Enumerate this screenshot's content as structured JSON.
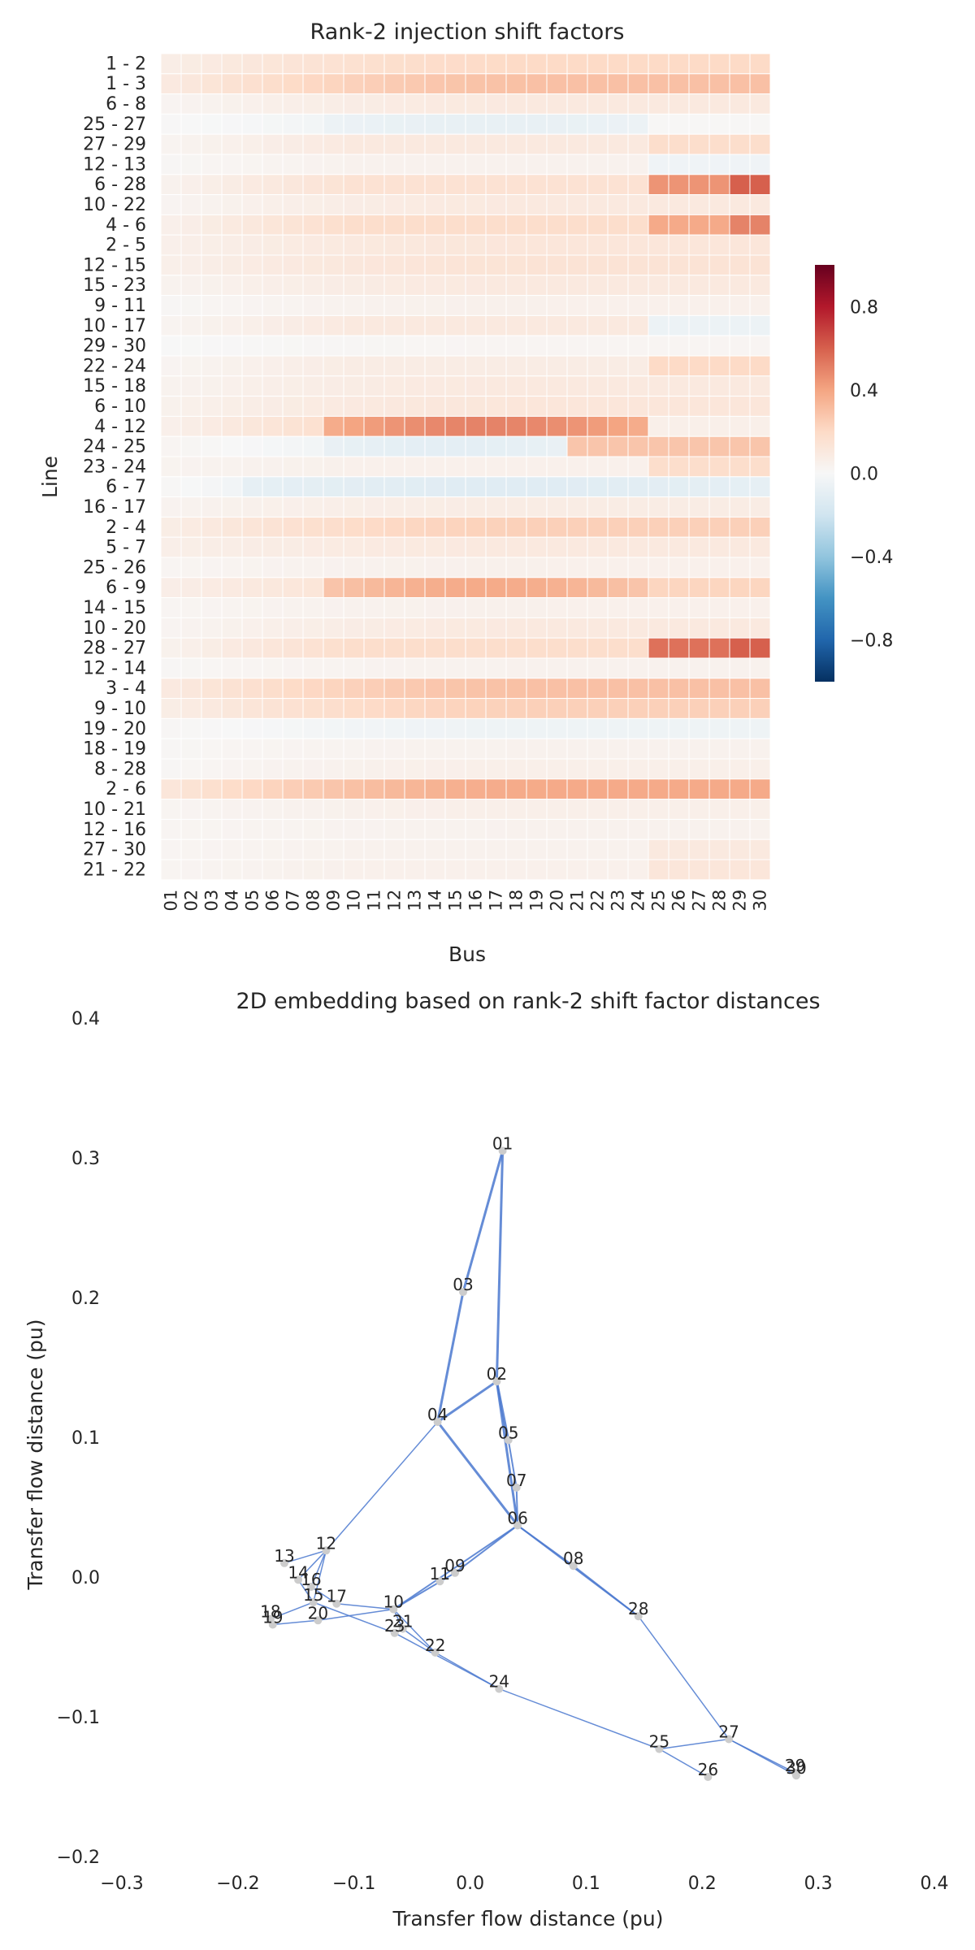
{
  "chart_data": [
    {
      "type": "heatmap",
      "title": "Rank-2 injection shift factors",
      "xlabel": "Bus",
      "ylabel": "Line",
      "x_categories": [
        "01",
        "02",
        "03",
        "04",
        "05",
        "06",
        "07",
        "08",
        "09",
        "10",
        "11",
        "12",
        "13",
        "14",
        "15",
        "16",
        "17",
        "18",
        "19",
        "20",
        "21",
        "22",
        "23",
        "24",
        "25",
        "26",
        "27",
        "28",
        "29",
        "30"
      ],
      "y_categories": [
        "1 - 2",
        "1 - 3",
        "6 - 8",
        "25 - 27",
        "27 - 29",
        "12 - 13",
        "6 - 28",
        "10 - 22",
        "4 - 6",
        "2 - 5",
        "12 - 15",
        "15 - 23",
        "9 - 11",
        "10 - 17",
        "29 - 30",
        "22 - 24",
        "15 - 18",
        "6 - 10",
        "4 - 12",
        "24 - 25",
        "23 - 24",
        "6 - 7",
        "16 - 17",
        "2 - 4",
        "5 - 7",
        "25 - 26",
        "6 - 9",
        "14 - 15",
        "10 - 20",
        "28 - 27",
        "12 - 14",
        "3 - 4",
        "9 - 10",
        "19 - 20",
        "18 - 19",
        "8 - 28",
        "2 - 6",
        "10 - 21",
        "12 - 16",
        "27 - 30",
        "21 - 22"
      ],
      "colormap": "RdBu_r",
      "vmin": -1.0,
      "vmax": 1.0,
      "colorbar_ticks": [
        0.8,
        0.4,
        0.0,
        -0.4,
        -0.8
      ],
      "colorbar_tick_labels": [
        "0.8",
        "0.4",
        "0.0",
        "−0.4",
        "−0.8"
      ],
      "rows": [
        {
          "type": "linear",
          "a": 0.06,
          "b": 0.2
        },
        {
          "type": "linear",
          "a": 0.08,
          "b": 0.3
        },
        {
          "type": "linear",
          "a": 0.02,
          "b": 0.1
        },
        {
          "type": "bump",
          "edge": 0.01,
          "mid": -0.08,
          "s": 9,
          "e": 24,
          "tail": 0.01
        },
        {
          "type": "step",
          "a": 0.02,
          "b": 0.1,
          "tail": 0.18
        },
        {
          "type": "step",
          "a": 0.01,
          "b": 0.04,
          "tail": -0.04
        },
        {
          "type": "step",
          "a": 0.03,
          "b": 0.15,
          "tail": 0.45,
          "t2": 0.6
        },
        {
          "type": "linear",
          "a": 0.02,
          "b": 0.1
        },
        {
          "type": "step",
          "a": 0.04,
          "b": 0.18,
          "tail": 0.38,
          "t2": 0.5
        },
        {
          "type": "linear",
          "a": 0.05,
          "b": 0.12
        },
        {
          "type": "linear",
          "a": 0.05,
          "b": 0.14
        },
        {
          "type": "linear",
          "a": 0.03,
          "b": 0.1
        },
        {
          "type": "linear",
          "a": 0.01,
          "b": 0.05
        },
        {
          "type": "step",
          "a": 0.02,
          "b": 0.1,
          "tail": -0.06
        },
        {
          "type": "linear",
          "a": 0.0,
          "b": 0.02
        },
        {
          "type": "step",
          "a": 0.02,
          "b": 0.08,
          "tail": 0.2
        },
        {
          "type": "linear",
          "a": 0.03,
          "b": 0.1
        },
        {
          "type": "linear",
          "a": 0.04,
          "b": 0.12
        },
        {
          "type": "bump",
          "edge": 0.04,
          "mid": 0.5,
          "s": 9,
          "e": 24,
          "tail": 0.06
        },
        {
          "type": "bump",
          "edge": 0.03,
          "mid": -0.1,
          "s": 9,
          "e": 20,
          "tail": 0.28
        },
        {
          "type": "step",
          "a": 0.03,
          "b": 0.05,
          "tail": 0.18
        },
        {
          "type": "bump",
          "edge": 0.02,
          "mid": -0.12,
          "s": 5,
          "e": 30,
          "tail": -0.1
        },
        {
          "type": "linear",
          "a": 0.03,
          "b": 0.08
        },
        {
          "type": "linear",
          "a": 0.06,
          "b": 0.24
        },
        {
          "type": "linear",
          "a": 0.06,
          "b": 0.1
        },
        {
          "type": "linear",
          "a": 0.02,
          "b": 0.05
        },
        {
          "type": "bump",
          "edge": 0.06,
          "mid": 0.38,
          "s": 9,
          "e": 24,
          "tail": 0.22
        },
        {
          "type": "linear",
          "a": 0.02,
          "b": 0.05
        },
        {
          "type": "linear",
          "a": 0.02,
          "b": 0.1
        },
        {
          "type": "step",
          "a": 0.03,
          "b": 0.18,
          "tail": 0.55,
          "t2": 0.6
        },
        {
          "type": "linear",
          "a": 0.01,
          "b": 0.04
        },
        {
          "type": "linear",
          "a": 0.08,
          "b": 0.3
        },
        {
          "type": "linear",
          "a": 0.06,
          "b": 0.24
        },
        {
          "type": "linear",
          "a": 0.02,
          "b": -0.05
        },
        {
          "type": "linear",
          "a": 0.01,
          "b": 0.04
        },
        {
          "type": "linear",
          "a": 0.01,
          "b": 0.06
        },
        {
          "type": "linear",
          "a": 0.1,
          "b": 0.38
        },
        {
          "type": "linear",
          "a": 0.02,
          "b": 0.06
        },
        {
          "type": "linear",
          "a": 0.02,
          "b": 0.04
        },
        {
          "type": "step",
          "a": 0.02,
          "b": 0.04,
          "tail": 0.1
        },
        {
          "type": "step",
          "a": 0.02,
          "b": 0.05,
          "tail": 0.12
        }
      ]
    },
    {
      "type": "scatter",
      "title": "2D embedding based on rank-2 shift factor distances",
      "xlabel": "Transfer flow distance (pu)",
      "ylabel": "Transfer flow distance (pu)",
      "xlim": [
        -0.3,
        0.4
      ],
      "ylim": [
        -0.2,
        0.4
      ],
      "x_ticks": [
        -0.3,
        -0.2,
        -0.1,
        0.0,
        0.1,
        0.2,
        0.3,
        0.4
      ],
      "x_tick_labels": [
        "−0.3",
        "−0.2",
        "−0.1",
        "0.0",
        "0.1",
        "0.2",
        "0.3",
        "0.4"
      ],
      "y_ticks": [
        0.4,
        0.3,
        0.2,
        0.1,
        0.0,
        -0.1,
        -0.2
      ],
      "y_tick_labels": [
        "0.4",
        "0.3",
        "0.2",
        "0.1",
        "0.0",
        "−0.1",
        "−0.2"
      ],
      "edge_color": "#4a78cf",
      "node_color": "#cccccc",
      "nodes": [
        {
          "id": "01",
          "x": 0.028,
          "y": 0.305
        },
        {
          "id": "02",
          "x": 0.023,
          "y": 0.14
        },
        {
          "id": "03",
          "x": -0.006,
          "y": 0.204
        },
        {
          "id": "04",
          "x": -0.028,
          "y": 0.111
        },
        {
          "id": "05",
          "x": 0.033,
          "y": 0.098
        },
        {
          "id": "06",
          "x": 0.041,
          "y": 0.037
        },
        {
          "id": "07",
          "x": 0.04,
          "y": 0.064
        },
        {
          "id": "08",
          "x": 0.089,
          "y": 0.008
        },
        {
          "id": "09",
          "x": -0.013,
          "y": 0.003
        },
        {
          "id": "10",
          "x": -0.066,
          "y": -0.023
        },
        {
          "id": "11",
          "x": -0.026,
          "y": -0.003
        },
        {
          "id": "12",
          "x": -0.124,
          "y": 0.019
        },
        {
          "id": "13",
          "x": -0.16,
          "y": 0.01
        },
        {
          "id": "14",
          "x": -0.148,
          "y": -0.002
        },
        {
          "id": "15",
          "x": -0.135,
          "y": -0.018
        },
        {
          "id": "16",
          "x": -0.137,
          "y": -0.007
        },
        {
          "id": "17",
          "x": -0.115,
          "y": -0.019
        },
        {
          "id": "18",
          "x": -0.172,
          "y": -0.03
        },
        {
          "id": "19",
          "x": -0.17,
          "y": -0.034
        },
        {
          "id": "20",
          "x": -0.131,
          "y": -0.031
        },
        {
          "id": "21",
          "x": -0.058,
          "y": -0.037
        },
        {
          "id": "22",
          "x": -0.03,
          "y": -0.054
        },
        {
          "id": "23",
          "x": -0.065,
          "y": -0.04
        },
        {
          "id": "24",
          "x": 0.025,
          "y": -0.08
        },
        {
          "id": "25",
          "x": 0.163,
          "y": -0.123
        },
        {
          "id": "26",
          "x": 0.205,
          "y": -0.143
        },
        {
          "id": "27",
          "x": 0.223,
          "y": -0.116
        },
        {
          "id": "28",
          "x": 0.145,
          "y": -0.028
        },
        {
          "id": "29",
          "x": 0.28,
          "y": -0.14
        },
        {
          "id": "30",
          "x": 0.281,
          "y": -0.142
        }
      ],
      "edges": [
        {
          "a": "01",
          "b": "02",
          "w": 3
        },
        {
          "a": "01",
          "b": "03",
          "w": 3
        },
        {
          "a": "03",
          "b": "04",
          "w": 3
        },
        {
          "a": "02",
          "b": "04",
          "w": 3
        },
        {
          "a": "02",
          "b": "05",
          "w": 3
        },
        {
          "a": "02",
          "b": "06",
          "w": 3
        },
        {
          "a": "04",
          "b": "06",
          "w": 3
        },
        {
          "a": "05",
          "b": "07",
          "w": 2
        },
        {
          "a": "06",
          "b": "07",
          "w": 2
        },
        {
          "a": "06",
          "b": "08",
          "w": 2
        },
        {
          "a": "06",
          "b": "28",
          "w": 2
        },
        {
          "a": "08",
          "b": "28",
          "w": 2
        },
        {
          "a": "06",
          "b": "09",
          "w": 2
        },
        {
          "a": "06",
          "b": "10",
          "w": 2
        },
        {
          "a": "09",
          "b": "11",
          "w": 1
        },
        {
          "a": "09",
          "b": "10",
          "w": 2
        },
        {
          "a": "04",
          "b": "12",
          "w": 1.5
        },
        {
          "a": "12",
          "b": "13",
          "w": 1.5
        },
        {
          "a": "12",
          "b": "14",
          "w": 1.5
        },
        {
          "a": "12",
          "b": "15",
          "w": 1.5
        },
        {
          "a": "12",
          "b": "16",
          "w": 1.5
        },
        {
          "a": "14",
          "b": "15",
          "w": 1.5
        },
        {
          "a": "16",
          "b": "17",
          "w": 1.5
        },
        {
          "a": "15",
          "b": "18",
          "w": 1.5
        },
        {
          "a": "18",
          "b": "19",
          "w": 1.5
        },
        {
          "a": "19",
          "b": "20",
          "w": 1.5
        },
        {
          "a": "10",
          "b": "20",
          "w": 1.5
        },
        {
          "a": "10",
          "b": "17",
          "w": 1.5
        },
        {
          "a": "10",
          "b": "21",
          "w": 1.5
        },
        {
          "a": "10",
          "b": "22",
          "w": 1.5
        },
        {
          "a": "21",
          "b": "22",
          "w": 1.5
        },
        {
          "a": "15",
          "b": "23",
          "w": 1.5
        },
        {
          "a": "22",
          "b": "24",
          "w": 1.5
        },
        {
          "a": "23",
          "b": "24",
          "w": 1.5
        },
        {
          "a": "24",
          "b": "25",
          "w": 1.5
        },
        {
          "a": "25",
          "b": "26",
          "w": 1.5
        },
        {
          "a": "25",
          "b": "27",
          "w": 1.5
        },
        {
          "a": "27",
          "b": "28",
          "w": 1.5
        },
        {
          "a": "27",
          "b": "29",
          "w": 1.5
        },
        {
          "a": "27",
          "b": "30",
          "w": 1.5
        },
        {
          "a": "29",
          "b": "30",
          "w": 1.5
        }
      ]
    }
  ]
}
